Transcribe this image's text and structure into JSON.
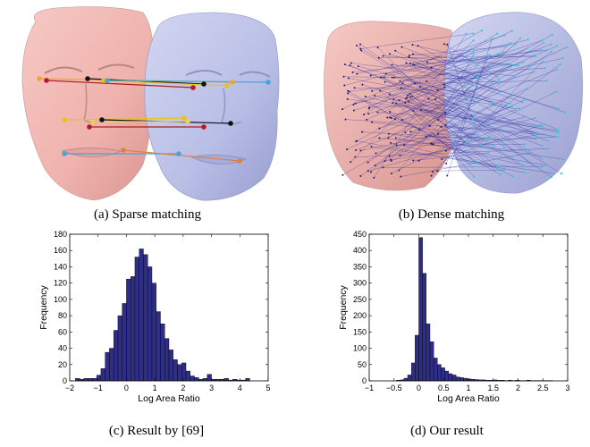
{
  "captions": {
    "a": "(a) Sparse matching",
    "b": "(b) Dense matching",
    "c": "(c) Result by [69]",
    "d": "(d) Our result"
  },
  "colors": {
    "source_face": "#f0b6b2",
    "target_face": "#b8bde6",
    "bar_fill": "#2e2e86",
    "dense_lines": "#2b2b9e",
    "dense_points_target": "#33c8d8"
  },
  "sparse_landmark_colors": [
    "#f2a23a",
    "#b01c22",
    "#111111",
    "#e8c21c",
    "#46a6d8",
    "#e08040",
    "#e8d060"
  ],
  "chart_data": [
    {
      "id": "c",
      "type": "bar",
      "xlabel": "Log Area Ratio",
      "ylabel": "Frequency",
      "xlim": [
        -2,
        5
      ],
      "ylim": [
        0,
        180
      ],
      "xticks": [
        -2,
        -1,
        0,
        1,
        2,
        3,
        4,
        5
      ],
      "yticks": [
        0,
        20,
        40,
        60,
        80,
        100,
        120,
        140,
        160,
        180
      ],
      "bin_width": 0.15,
      "bin_starts": [
        -1.8,
        -1.65,
        -1.5,
        -1.35,
        -1.2,
        -1.05,
        -0.9,
        -0.75,
        -0.6,
        -0.45,
        -0.3,
        -0.15,
        0,
        0.15,
        0.3,
        0.45,
        0.6,
        0.75,
        0.9,
        1.05,
        1.2,
        1.35,
        1.5,
        1.65,
        1.8,
        1.95,
        2.1,
        2.25,
        2.4,
        2.55,
        2.7,
        2.85,
        3.0,
        3.15,
        3.3,
        3.45,
        3.6,
        3.75,
        3.9,
        4.05,
        4.2
      ],
      "values": [
        3,
        2,
        3,
        3,
        3,
        7,
        15,
        35,
        40,
        62,
        80,
        95,
        125,
        128,
        152,
        162,
        155,
        140,
        120,
        85,
        70,
        52,
        38,
        26,
        20,
        22,
        12,
        6,
        4,
        2,
        3,
        8,
        2,
        2,
        2,
        3,
        1,
        2,
        1,
        1,
        3
      ]
    },
    {
      "id": "d",
      "type": "bar",
      "xlabel": "Log Area Ratio",
      "ylabel": "Frequency",
      "xlim": [
        -1,
        3
      ],
      "ylim": [
        0,
        450
      ],
      "xticks": [
        -1,
        -0.5,
        0,
        0.5,
        1,
        1.5,
        2,
        2.5,
        3
      ],
      "yticks": [
        0,
        50,
        100,
        150,
        200,
        250,
        300,
        350,
        400,
        450
      ],
      "bin_width": 0.075,
      "bin_starts": [
        -0.45,
        -0.375,
        -0.3,
        -0.225,
        -0.15,
        -0.075,
        0,
        0.075,
        0.15,
        0.225,
        0.3,
        0.375,
        0.45,
        0.525,
        0.6,
        0.675,
        0.75,
        0.825,
        0.9,
        0.975,
        1.05,
        1.125,
        1.2,
        1.275,
        1.35,
        1.425,
        1.5,
        1.575,
        1.65,
        1.725,
        1.8,
        1.875,
        1.95,
        2.025,
        2.1,
        2.175,
        2.25,
        2.325,
        2.4,
        2.475,
        2.55,
        2.625
      ],
      "values": [
        2,
        3,
        8,
        18,
        55,
        140,
        440,
        330,
        175,
        120,
        70,
        50,
        40,
        30,
        22,
        18,
        12,
        10,
        8,
        6,
        5,
        4,
        3,
        3,
        2,
        2,
        3,
        2,
        2,
        1,
        2,
        1,
        2,
        1,
        1,
        2,
        1,
        1,
        1,
        1,
        1,
        1
      ]
    }
  ]
}
